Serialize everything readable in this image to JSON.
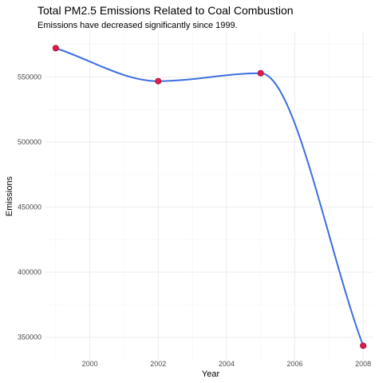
{
  "chart_data": {
    "type": "line",
    "title": "Total PM2.5 Emissions Related to Coal Combustion",
    "subtitle": "Emissions have decreased significantly since 1999.",
    "xlabel": "Year",
    "ylabel": "Emissions",
    "x": [
      1999,
      2002,
      2005,
      2008
    ],
    "values": [
      572126,
      546789,
      552881,
      343432
    ],
    "xlim": [
      1998.7,
      2008.3
    ],
    "ylim": [
      332000,
      584000
    ],
    "x_ticks": [
      2000,
      2002,
      2004,
      2006,
      2008
    ],
    "x_tick_labels": [
      "2000",
      "2002",
      "2004",
      "2006",
      "2008"
    ],
    "y_ticks": [
      350000,
      400000,
      450000,
      500000,
      550000
    ],
    "y_tick_labels": [
      "350000",
      "400000",
      "450000",
      "500000",
      "550000"
    ],
    "grid": true,
    "legend": "none",
    "colors": {
      "line": "#3b6fe0",
      "points": "#e8174a",
      "grid": "#ebebeb"
    }
  }
}
